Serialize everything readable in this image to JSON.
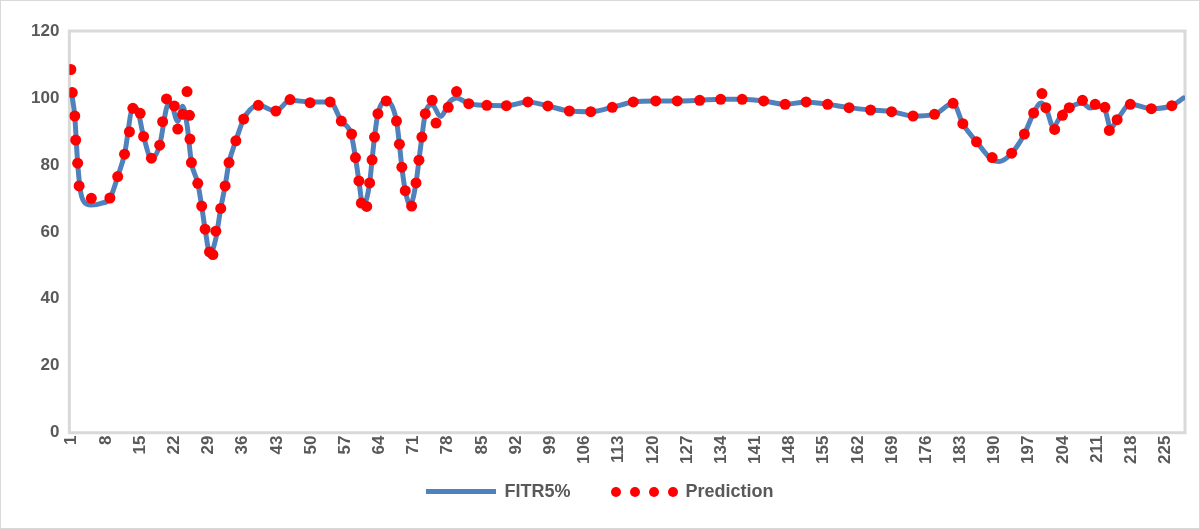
{
  "chart_data": {
    "type": "line",
    "xlim": [
      0.5,
      229
    ],
    "xticks": [
      1,
      8,
      15,
      22,
      29,
      36,
      43,
      50,
      57,
      64,
      71,
      78,
      85,
      92,
      99,
      106,
      113,
      120,
      127,
      134,
      141,
      148,
      155,
      162,
      169,
      176,
      183,
      190,
      197,
      204,
      211,
      218,
      225
    ],
    "ylim": [
      0,
      120
    ],
    "yticks": [
      0,
      20,
      40,
      60,
      80,
      100,
      120
    ],
    "grid": false,
    "legend": "bottom",
    "series": [
      {
        "name": "FITR5%",
        "color": "#4f81bd",
        "marker": "none",
        "line_style": "solid",
        "x": [
          1,
          1.6,
          2.2,
          2.8,
          3.5,
          5,
          7,
          8.8,
          10.4,
          11.8,
          13.5,
          14.2,
          15.7,
          17.3,
          19,
          20.4,
          21.2,
          22.7,
          23.7,
          24.6,
          25.5,
          26.8,
          27.6,
          28.3,
          29.3,
          30.5,
          31.5,
          32.4,
          33.2,
          34.6,
          36.2,
          37.5,
          39.2,
          42.8,
          45.7,
          49.8,
          53.9,
          56.2,
          58.2,
          59.1,
          59.8,
          60.6,
          61.4,
          62,
          62.5,
          63,
          63.7,
          65.4,
          67.5,
          68.1,
          68.6,
          69.3,
          70.3,
          71.5,
          72.1,
          72.7,
          73.4,
          74.8,
          76.5,
          78.5,
          79.8,
          82.3,
          86,
          90,
          94.4,
          98.5,
          102.9,
          107.3,
          111.7,
          116,
          120.6,
          125,
          129.6,
          133.9,
          138.3,
          142.7,
          147.1,
          151.4,
          155.8,
          160.2,
          164.6,
          169,
          173.3,
          177.7,
          181.5,
          183.5,
          186.3,
          189.5,
          191,
          193.5,
          196.1,
          198,
          199.5,
          200.5,
          202,
          203.9,
          205.3,
          208,
          209.5,
          211.5,
          212.6,
          213.8,
          215.1,
          217.8,
          222.1,
          226.3,
          228.7
        ],
        "values": [
          101,
          94.6,
          80.5,
          72,
          69,
          68,
          68.5,
          70,
          76.5,
          83.2,
          96.9,
          97,
          88.5,
          82,
          85.9,
          97,
          98.6,
          93,
          97.5,
          92,
          80.7,
          74.5,
          67.7,
          60.8,
          53.5,
          58,
          67,
          73.7,
          80.7,
          87.2,
          93.7,
          96.5,
          97.8,
          96.1,
          99.3,
          98.8,
          98.8,
          93.1,
          89.2,
          82.2,
          75.2,
          68,
          70,
          74.6,
          81.5,
          88.3,
          95.3,
          99.1,
          93.1,
          86.2,
          79.3,
          72.3,
          68,
          74.6,
          81.4,
          88.3,
          95.3,
          98,
          94.5,
          99,
          100,
          98.3,
          97.8,
          97.7,
          98.8,
          97.6,
          96.1,
          95.9,
          97.2,
          98.8,
          99.1,
          99.1,
          99.3,
          99.6,
          99.6,
          99.1,
          98.1,
          98.8,
          98.1,
          97.1,
          96.4,
          95.9,
          94.6,
          95.1,
          98.4,
          92.3,
          86.9,
          81.5,
          81,
          83.5,
          89.2,
          95.5,
          98.5,
          97.1,
          91.5,
          95.5,
          97.1,
          98.5,
          97,
          97.5,
          96.5,
          91,
          93.5,
          98.1,
          96.8,
          97.7,
          100
        ]
      },
      {
        "name": "Prediction",
        "type": "scatter",
        "color": "#ff0000",
        "marker": "circle",
        "x": [
          0.8,
          1.1,
          1.6,
          1.8,
          2.2,
          2.5,
          5,
          8.8,
          10.4,
          11.8,
          12.8,
          13.5,
          15,
          15.7,
          17.3,
          19,
          19.6,
          20.4,
          22,
          22.7,
          23.7,
          24.6,
          25.1,
          25.2,
          25.5,
          26.8,
          27.6,
          28.3,
          29.2,
          29.9,
          30.5,
          31.5,
          32.4,
          33.2,
          34.6,
          36.2,
          39.2,
          42.8,
          45.7,
          49.8,
          53.9,
          56.2,
          58.3,
          59.1,
          59.8,
          60.3,
          61.4,
          62,
          62.5,
          63,
          63.7,
          65.4,
          67.5,
          68.1,
          68.6,
          69.3,
          70.6,
          71.5,
          72.1,
          72.7,
          73.4,
          74.8,
          75.6,
          78.1,
          79.8,
          82.3,
          86,
          90,
          94.4,
          98.5,
          102.9,
          107.3,
          111.7,
          116,
          120.6,
          125,
          129.6,
          133.9,
          138.3,
          142.7,
          147.1,
          151.4,
          155.8,
          160.2,
          164.6,
          168.9,
          173.3,
          177.7,
          181.5,
          183.5,
          186.3,
          189.5,
          193.5,
          196.1,
          198,
          199.7,
          200.5,
          202.3,
          203.9,
          205.3,
          208,
          210.6,
          212.6,
          213.5,
          215.1,
          217.8,
          222.1,
          226.3
        ],
        "values": [
          108.5,
          101.6,
          94.6,
          87.4,
          80.5,
          73.7,
          70,
          70.1,
          76.5,
          83.2,
          89.9,
          96.9,
          95.4,
          88.5,
          82,
          85.9,
          92.9,
          99.7,
          97.6,
          90.7,
          95.1,
          101.9,
          94.8,
          87.7,
          80.7,
          74.5,
          67.7,
          60.8,
          54,
          53.2,
          60.2,
          67,
          73.7,
          80.7,
          87.2,
          93.7,
          97.8,
          96.1,
          99.5,
          98.6,
          98.8,
          93.1,
          89.2,
          82.2,
          75.2,
          68.6,
          67.6,
          74.6,
          81.5,
          88.3,
          95.3,
          99.1,
          93.1,
          86.2,
          79.3,
          72.3,
          67.7,
          74.6,
          81.4,
          88.3,
          95.3,
          99.3,
          92.5,
          97.2,
          101.9,
          98.3,
          97.8,
          97.7,
          98.8,
          97.6,
          96.1,
          95.9,
          97.2,
          98.8,
          99.1,
          99.1,
          99.3,
          99.6,
          99.6,
          99.1,
          98.1,
          98.8,
          98.1,
          97.1,
          96.4,
          95.9,
          94.6,
          95.1,
          98.4,
          92.3,
          86.9,
          82.2,
          83.5,
          89.2,
          95.5,
          101.3,
          97.1,
          90.6,
          94.8,
          97.1,
          99.3,
          98.1,
          97.2,
          90.3,
          93.5,
          98.1,
          96.8,
          97.7
        ]
      }
    ]
  }
}
